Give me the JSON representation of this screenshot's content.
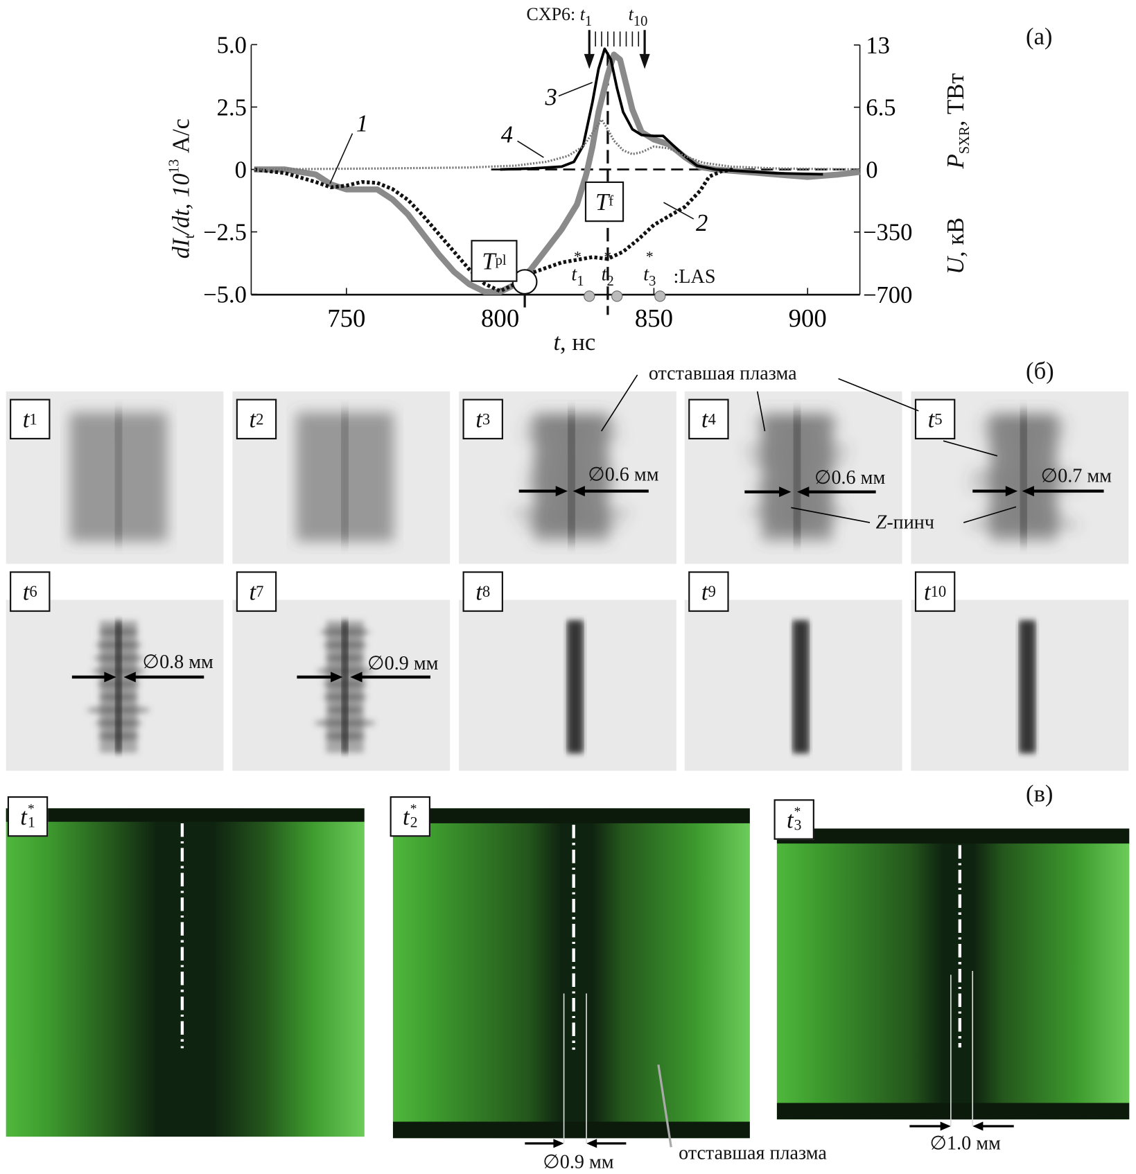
{
  "chart_data": {
    "type": "line",
    "panel_label": "(a)",
    "xlabel": {
      "var": "t",
      "unit": ", нс"
    },
    "xlim": [
      720,
      917
    ],
    "xticks": [
      750,
      800,
      850,
      900
    ],
    "ylim_left": [
      -5.0,
      5.0
    ],
    "yticks_left": [
      "5.0",
      "2.5",
      "0",
      "−2.5",
      "−5.0"
    ],
    "ylabel_left": {
      "a": "dI",
      "b": "t",
      "c": "/dt, 10",
      "d": "13",
      "e": " А/с"
    },
    "yticks_right_upper": [
      "13",
      "6.5",
      "0"
    ],
    "ylabel_right_upper": {
      "a": "P",
      "b": "SXR",
      "c": ", ТВт"
    },
    "ylim_right_upper": [
      0,
      13
    ],
    "yticks_right_lower": [
      "−350",
      "−700"
    ],
    "ylabel_right_lower": {
      "a": "U",
      "b": ", кВ"
    },
    "ylim_right_lower": [
      -700,
      0
    ],
    "grid": false,
    "series": [
      {
        "name": "1",
        "axis": "left",
        "color": "#8a8a8a",
        "style": "thick-solid",
        "x": [
          720,
          730,
          740,
          745,
          750,
          755,
          760,
          765,
          770,
          775,
          780,
          785,
          790,
          795,
          800,
          805,
          810,
          815,
          820,
          825,
          828,
          830,
          832,
          835,
          837,
          839,
          841,
          843,
          846,
          850,
          855,
          860,
          865,
          870,
          880,
          890,
          900,
          910,
          917
        ],
        "y": [
          0,
          0,
          -0.2,
          -0.6,
          -0.8,
          -0.8,
          -0.8,
          -1.2,
          -1.8,
          -2.6,
          -3.4,
          -4.1,
          -4.6,
          -4.9,
          -4.9,
          -4.6,
          -4.0,
          -3.2,
          -2.4,
          -1.4,
          -0.2,
          0.9,
          2.3,
          3.8,
          4.6,
          4.4,
          3.4,
          2.4,
          1.5,
          1.2,
          1.0,
          0.5,
          0.1,
          0,
          -0.1,
          -0.2,
          -0.3,
          -0.2,
          -0.1
        ]
      },
      {
        "name": "2",
        "axis": "right-lower",
        "color": "#111111",
        "style": "dotted",
        "x": [
          720,
          730,
          740,
          745,
          750,
          755,
          760,
          765,
          770,
          775,
          780,
          785,
          790,
          795,
          800,
          805,
          810,
          815,
          820,
          825,
          830,
          835,
          840,
          845,
          850,
          855,
          860,
          865,
          868,
          872,
          876
        ],
        "y": [
          0,
          -20,
          -70,
          -100,
          -90,
          -70,
          -75,
          -110,
          -170,
          -260,
          -360,
          -460,
          -560,
          -640,
          -680,
          -640,
          -580,
          -550,
          -520,
          -505,
          -490,
          -500,
          -460,
          -390,
          -310,
          -260,
          -210,
          -120,
          -40,
          -10,
          0
        ]
      },
      {
        "name": "3",
        "axis": "right-upper",
        "color": "#000000",
        "style": "solid",
        "x": [
          800,
          810,
          820,
          824,
          827,
          830,
          832,
          834,
          836,
          838,
          840,
          843,
          846,
          850,
          853,
          856,
          860,
          864,
          870,
          880,
          890,
          905
        ],
        "y": [
          0,
          0.1,
          0.3,
          0.8,
          2.5,
          7,
          10.5,
          12.6,
          11.5,
          8.5,
          6,
          4.2,
          3.6,
          3.5,
          3.5,
          2.6,
          1.4,
          0.4,
          0,
          -0.2,
          -0.4,
          -0.5
        ]
      },
      {
        "name": "4",
        "axis": "right-upper",
        "color": "#777777",
        "style": "dotted-thin",
        "x": [
          720,
          760,
          790,
          805,
          815,
          822,
          827,
          830,
          833,
          835,
          837,
          840,
          843,
          846,
          850,
          855,
          860,
          866,
          875,
          890,
          917
        ],
        "y": [
          0,
          0.1,
          0.2,
          0.4,
          0.8,
          1.4,
          2.4,
          3.8,
          5.2,
          4.2,
          3,
          2,
          1.6,
          1.8,
          2.4,
          2.2,
          1.4,
          0.7,
          0.3,
          0.1,
          0
        ]
      }
    ],
    "markers": {
      "T_pl": {
        "label": "T",
        "sub": "pl",
        "t": 808
      },
      "T_f": {
        "label": "T",
        "sub": "f",
        "t": 835
      },
      "cxp6": {
        "label": "CXP6:",
        "first": {
          "t": "t",
          "sub": "1"
        },
        "last": {
          "t": "t",
          "sub": "10"
        },
        "t_first": 829,
        "t_last": 847,
        "frames": 10
      },
      "las": {
        "label": ":LAS",
        "times": [
          829,
          838,
          852
        ],
        "items": [
          {
            "t": "t",
            "sub": "1",
            "star": "*"
          },
          {
            "t": "t",
            "sub": "2",
            "star": "*"
          },
          {
            "t": "t",
            "sub": "3",
            "star": "*"
          }
        ]
      }
    }
  },
  "frames_section": {
    "panel_label": "(б)",
    "frames": [
      {
        "t": "t",
        "sub": "1"
      },
      {
        "t": "t",
        "sub": "2"
      },
      {
        "t": "t",
        "sub": "3"
      },
      {
        "t": "t",
        "sub": "4"
      },
      {
        "t": "t",
        "sub": "5"
      },
      {
        "t": "t",
        "sub": "6"
      },
      {
        "t": "t",
        "sub": "7"
      },
      {
        "t": "t",
        "sub": "8"
      },
      {
        "t": "t",
        "sub": "9"
      },
      {
        "t": "t",
        "sub": "10"
      }
    ],
    "annotations": {
      "trailing_plasma": "отставшая плазма",
      "z_pinch": {
        "z": "Z",
        "rest": "-пинч"
      },
      "d_t3": "∅0.6 мм",
      "d_t4": "∅0.6 мм",
      "d_t5": "∅0.7 мм",
      "d_t6": "∅0.8 мм",
      "d_t7": "∅0.9 мм"
    }
  },
  "laser_section": {
    "panel_label": "(в)",
    "frames": [
      {
        "t": "t",
        "sub": "1",
        "star": "*"
      },
      {
        "t": "t",
        "sub": "2",
        "star": "*"
      },
      {
        "t": "t",
        "sub": "3",
        "star": "*"
      }
    ],
    "annotations": {
      "d_t2": "∅0.9 мм",
      "d_t3": "∅1.0 мм",
      "trailing_plasma": "отставшая плазма"
    },
    "colors": {
      "plasma_green": "#4fb83c",
      "dark": "#0f2410"
    }
  }
}
